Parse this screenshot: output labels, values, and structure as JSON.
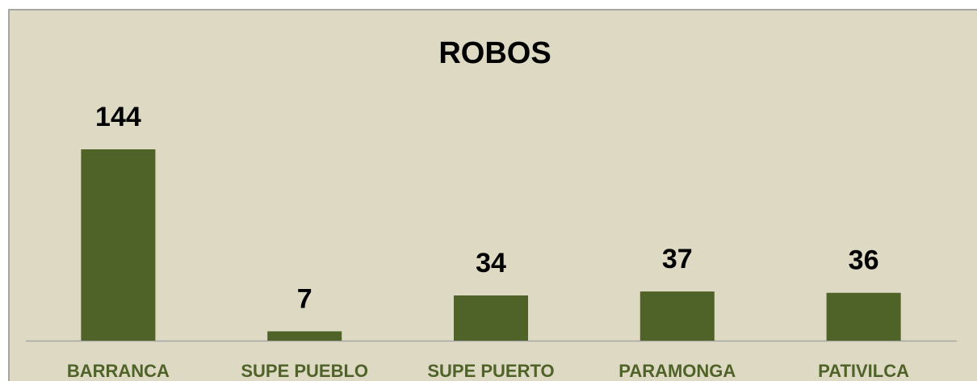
{
  "chart_data": {
    "type": "bar",
    "title": "ROBOS",
    "categories": [
      "BARRANCA",
      "SUPE PUEBLO",
      "SUPE PUERTO",
      "PARAMONGA",
      "PATIVILCA"
    ],
    "values": [
      144,
      7,
      34,
      37,
      36
    ],
    "color": "#4f6228"
  }
}
